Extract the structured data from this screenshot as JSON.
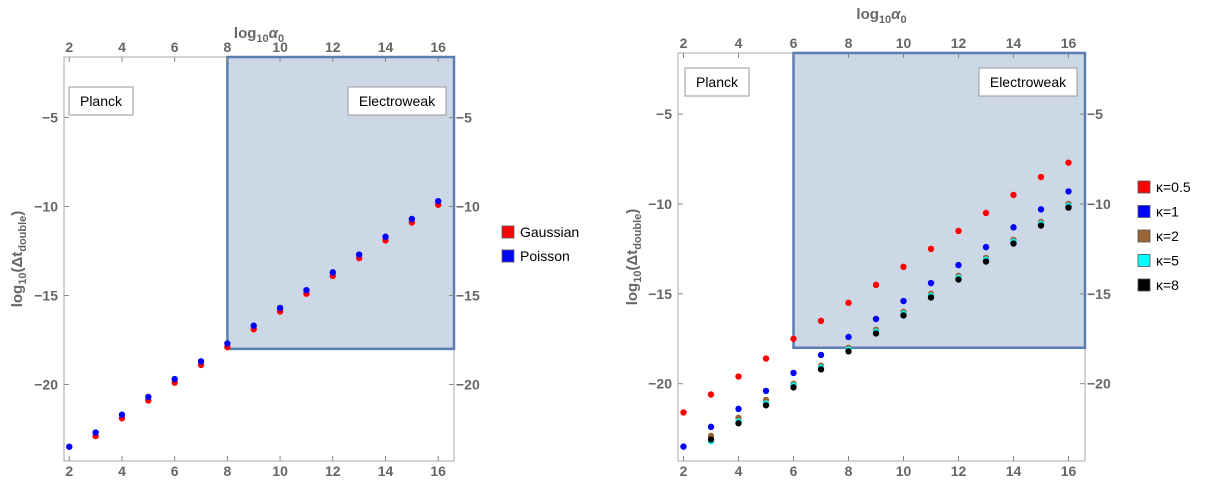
{
  "chart_data": [
    {
      "type": "scatter",
      "xlabel": "log₁₀α₀",
      "xlabel_parts": {
        "pre": "log",
        "sub": "10",
        "post": "α",
        "post_sub": "0"
      },
      "ylabel_parts": {
        "pre": "log",
        "sub": "10",
        "mid": "(Δt",
        "mid_sub": "double",
        "post": ")"
      },
      "xlim": [
        1.8,
        16.6
      ],
      "ylim": [
        -24.3,
        -1.6
      ],
      "x_ticks": [
        2,
        4,
        6,
        8,
        10,
        12,
        14,
        16
      ],
      "y_ticks": [
        -5,
        -10,
        -15,
        -20
      ],
      "region_labels": {
        "left": "Planck",
        "right": "Electroweak"
      },
      "shaded_region": {
        "x": [
          8,
          16.6
        ],
        "y": [
          -18,
          -1.6
        ]
      },
      "legend_position": "right",
      "series": [
        {
          "name": "Gaussian",
          "color": "#ff0000",
          "x": [
            3,
            4,
            5,
            6,
            7,
            8,
            9,
            10,
            11,
            12,
            13,
            14,
            15,
            16
          ],
          "y": [
            -22.9,
            -21.9,
            -20.9,
            -19.9,
            -18.9,
            -17.9,
            -16.9,
            -15.9,
            -14.9,
            -13.9,
            -12.9,
            -11.9,
            -10.9,
            -9.9
          ]
        },
        {
          "name": "Poisson",
          "color": "#0000ff",
          "x": [
            2,
            3,
            4,
            5,
            6,
            7,
            8,
            9,
            10,
            11,
            12,
            13,
            14,
            15,
            16
          ],
          "y": [
            -23.5,
            -22.7,
            -21.7,
            -20.7,
            -19.7,
            -18.7,
            -17.7,
            -16.7,
            -15.7,
            -14.7,
            -13.7,
            -12.7,
            -11.7,
            -10.7,
            -9.7
          ]
        }
      ]
    },
    {
      "type": "scatter",
      "xlabel": "log₁₀α₀",
      "xlabel_parts": {
        "pre": "log",
        "sub": "10",
        "post": "α",
        "post_sub": "0"
      },
      "ylabel_parts": {
        "pre": "log",
        "sub": "10",
        "mid": "(Δt",
        "mid_sub": "double",
        "post": ")"
      },
      "xlim": [
        1.8,
        16.6
      ],
      "ylim": [
        -24.3,
        -1.6
      ],
      "x_ticks": [
        2,
        4,
        6,
        8,
        10,
        12,
        14,
        16
      ],
      "y_ticks": [
        -5,
        -10,
        -15,
        -20
      ],
      "region_labels": {
        "left": "Planck",
        "right": "Electroweak"
      },
      "shaded_region": {
        "x": [
          6,
          16.6
        ],
        "y": [
          -18,
          -1.6
        ]
      },
      "legend_position": "right",
      "series": [
        {
          "name": "κ=0.5",
          "color": "#ff0000",
          "x": [
            2,
            3,
            4,
            5,
            6,
            7,
            8,
            9,
            10,
            11,
            12,
            13,
            14,
            15,
            16
          ],
          "y": [
            -21.6,
            -20.6,
            -19.6,
            -18.6,
            -17.5,
            -16.5,
            -15.5,
            -14.5,
            -13.5,
            -12.5,
            -11.5,
            -10.5,
            -9.5,
            -8.5,
            -7.7
          ]
        },
        {
          "name": "κ=1",
          "color": "#0000ff",
          "x": [
            2,
            3,
            4,
            5,
            6,
            7,
            8,
            9,
            10,
            11,
            12,
            13,
            14,
            15,
            16
          ],
          "y": [
            -23.5,
            -22.4,
            -21.4,
            -20.4,
            -19.4,
            -18.4,
            -17.4,
            -16.4,
            -15.4,
            -14.4,
            -13.4,
            -12.4,
            -11.3,
            -10.3,
            -9.3
          ]
        },
        {
          "name": "κ=2",
          "color": "#996633",
          "x": [
            3,
            4,
            5,
            6,
            7,
            8,
            9,
            10,
            11,
            12,
            13,
            14,
            15,
            16
          ],
          "y": [
            -22.9,
            -21.9,
            -20.9,
            -20.0,
            -19.0,
            -18.0,
            -17.0,
            -16.0,
            -15.0,
            -14.0,
            -13.0,
            -12.0,
            -11.0,
            -10.0
          ]
        },
        {
          "name": "κ=5",
          "color": "#00ffff",
          "x": [
            3,
            4,
            5,
            6,
            7,
            8,
            9,
            10,
            11,
            12,
            13,
            14,
            15,
            16
          ],
          "y": [
            -23.2,
            -22.1,
            -21.1,
            -20.1,
            -19.1,
            -18.1,
            -17.1,
            -16.1,
            -15.1,
            -14.1,
            -13.1,
            -12.1,
            -11.1,
            -10.1
          ]
        },
        {
          "name": "κ=8",
          "color": "#000000",
          "x": [
            3,
            4,
            5,
            6,
            7,
            8,
            9,
            10,
            11,
            12,
            13,
            14,
            15,
            16
          ],
          "y": [
            -23.1,
            -22.2,
            -21.2,
            -20.2,
            -19.2,
            -18.2,
            -17.2,
            -16.2,
            -15.2,
            -14.2,
            -13.2,
            -12.2,
            -11.2,
            -10.2
          ]
        }
      ]
    }
  ]
}
